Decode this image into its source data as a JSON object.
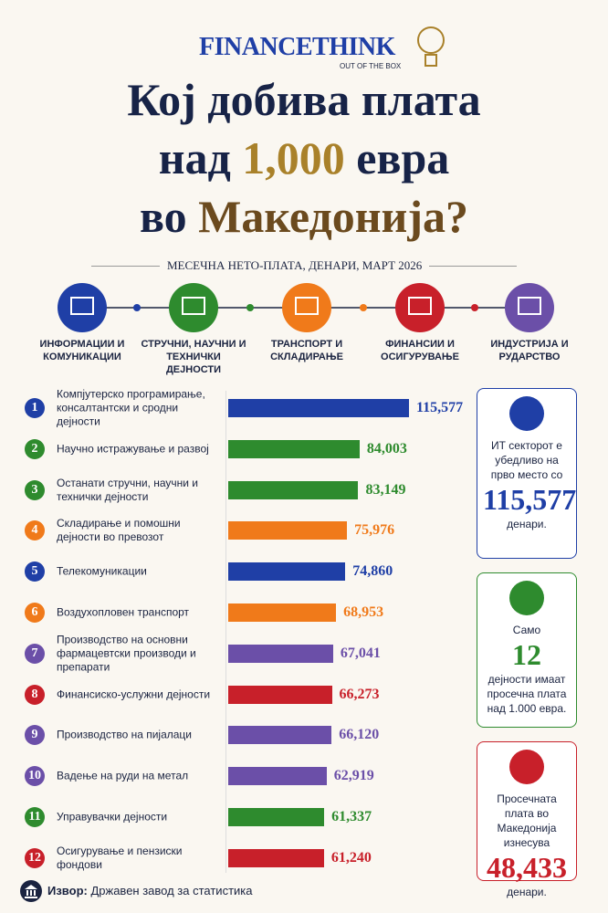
{
  "header": {
    "logo": "FINANCETHINK",
    "logo_tagline": "OUT OF THE BOX",
    "title_line1": "Кој добива плата",
    "title_line2_a": "над",
    "title_line2_b": "1,000",
    "title_line2_c": "евра",
    "title_line3_a": "во",
    "title_line3_b": "Македонија?",
    "subtitle": "МЕСЕЧНА НЕТО-ПЛАТА, ДЕНАРИ, МАРТ 2026"
  },
  "sectors": [
    {
      "label": "ИНФОРМАЦИИ И КОМУНИКАЦИИ",
      "color": "#1f3fa6"
    },
    {
      "label": "СТРУЧНИ, НАУЧНИ И ТЕХНИЧКИ ДЕЈНОСТИ",
      "color": "#2e8b2e"
    },
    {
      "label": "ТРАНСПОРТ И СКЛАДИРАЊЕ",
      "color": "#f07a1a"
    },
    {
      "label": "ФИНАНСИИ И ОСИГУРУВАЊЕ",
      "color": "#c8202a"
    },
    {
      "label": "ИНДУСТРИЈА И РУДАРСТВО",
      "color": "#6b4fa8"
    }
  ],
  "chart_data": {
    "type": "hbar",
    "ranks": [
      1,
      2,
      3,
      4,
      5,
      6,
      7,
      8,
      9,
      10,
      11,
      12
    ],
    "categories": [
      "Компјутерско програмирање, консалтантски и сродни дејности",
      "Научно истражување и развој",
      "Останати стручни, научни и технички дејности",
      "Складирање и помошни дејности во превозот",
      "Телекомуникации",
      "Воздухопловен транспорт",
      "Производство на основни фармацевтски производи и препарати",
      "Финансиско-услужни дејности",
      "Производство на пијалаци",
      "Вадење на руди на метал",
      "Управувачки дејности",
      "Осигурување и пензиски фондови"
    ],
    "values": [
      115577,
      84003,
      83149,
      75976,
      74860,
      68953,
      67041,
      66273,
      66120,
      62919,
      61337,
      61240
    ],
    "value_labels": [
      "115,577",
      "84,003",
      "83,149",
      "75,976",
      "74,860",
      "68,953",
      "67,041",
      "66,273",
      "66,120",
      "62,919",
      "61,337",
      "61,240"
    ],
    "colors": [
      "#1f3fa6",
      "#2e8b2e",
      "#2e8b2e",
      "#f07a1a",
      "#1f3fa6",
      "#f07a1a",
      "#6b4fa8",
      "#c8202a",
      "#6b4fa8",
      "#6b4fa8",
      "#2e8b2e",
      "#c8202a"
    ]
  },
  "boxes": [
    {
      "text_top": "ИТ секторот е убедливо на прво место со",
      "value": "115,577",
      "text_bottom": "денари.",
      "color": "#1f3fa6"
    },
    {
      "text_top": "Само",
      "value": "12",
      "text_bottom": "дејности имаат просечна плата над 1.000 евра.",
      "color": "#2e8b2e"
    },
    {
      "text_top": "Просечната плата во Македонија изнесува",
      "value": "48,433",
      "text_bottom": "денари.",
      "color": "#c8202a"
    }
  ],
  "source": {
    "label": "Извор:",
    "text": "Државен завод за статистика"
  }
}
